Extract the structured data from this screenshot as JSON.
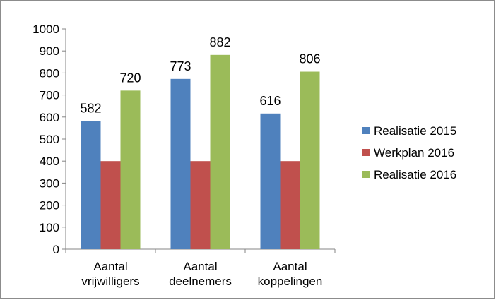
{
  "chart_data": {
    "type": "bar",
    "categories": [
      [
        "Aantal",
        "vrijwilligers"
      ],
      [
        "Aantal",
        "deelnemers"
      ],
      [
        "Aantal",
        "koppelingen"
      ]
    ],
    "series": [
      {
        "name": "Realisatie 2015",
        "values": [
          582,
          773,
          616
        ],
        "color": "#4f81bd",
        "show_labels": true
      },
      {
        "name": "Werkplan 2016",
        "values": [
          400,
          400,
          400
        ],
        "color": "#c0504d",
        "show_labels": false
      },
      {
        "name": "Realisatie 2016",
        "values": [
          720,
          882,
          806
        ],
        "color": "#9bbb59",
        "show_labels": true
      }
    ],
    "ylim": [
      0,
      1000
    ],
    "yticks": [
      0,
      100,
      200,
      300,
      400,
      500,
      600,
      700,
      800,
      900,
      1000
    ],
    "grid": false,
    "legend_position": "right"
  }
}
